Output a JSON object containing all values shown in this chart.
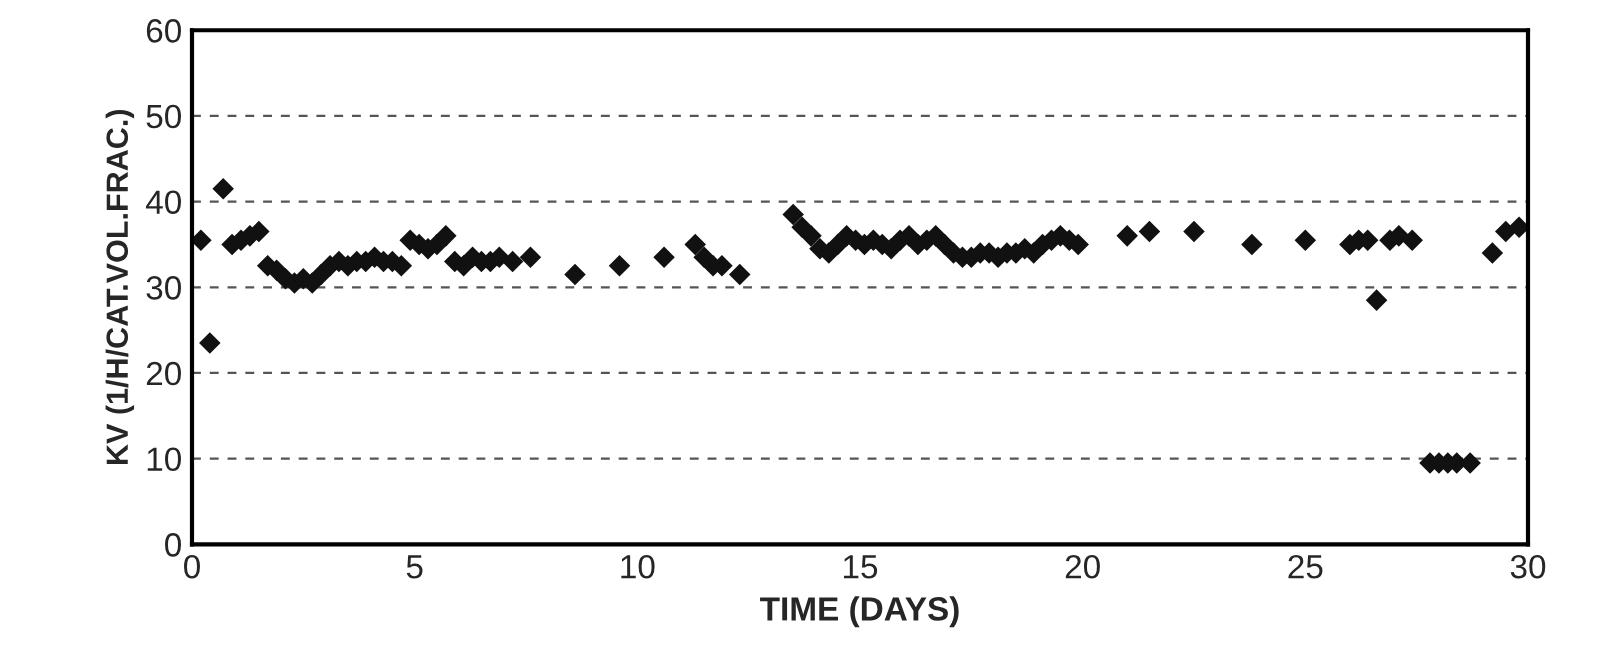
{
  "chart_data": {
    "type": "scatter",
    "xlabel": "TIME (DAYS)",
    "ylabel": "KV (1/H/CAT.VOL.FRAC.)",
    "xlim": [
      0,
      30
    ],
    "xticks": [
      0,
      5,
      10,
      15,
      20,
      25,
      30
    ],
    "ylim": [
      0,
      60
    ],
    "yticks": [
      0,
      10,
      20,
      30,
      40,
      50,
      60
    ],
    "grid": "y",
    "marker": "diamond",
    "series": [
      {
        "color": "#111111",
        "x": [
          0.2,
          0.4,
          0.7,
          0.9,
          1.1,
          1.3,
          1.5,
          1.7,
          1.9,
          2.1,
          2.3,
          2.5,
          2.7,
          2.9,
          3.1,
          3.3,
          3.5,
          3.7,
          3.9,
          4.1,
          4.3,
          4.5,
          4.7,
          4.9,
          5.1,
          5.3,
          5.5,
          5.7,
          5.9,
          6.1,
          6.3,
          6.5,
          6.7,
          6.9,
          7.2,
          7.6,
          8.6,
          9.6,
          10.6,
          11.3,
          11.5,
          11.7,
          11.9,
          12.3,
          13.5,
          13.7,
          13.9,
          14.1,
          14.3,
          14.5,
          14.7,
          14.9,
          15.1,
          15.3,
          15.5,
          15.7,
          15.9,
          16.1,
          16.3,
          16.5,
          16.7,
          16.9,
          17.1,
          17.3,
          17.5,
          17.7,
          17.9,
          18.1,
          18.3,
          18.5,
          18.7,
          18.9,
          19.1,
          19.3,
          19.5,
          19.7,
          19.9,
          21,
          21.5,
          22.5,
          23.8,
          25,
          26,
          26.2,
          26.4,
          26.6,
          26.9,
          27.1,
          27.4,
          27.8,
          28,
          28.2,
          28.4,
          28.7,
          29.2,
          29.5,
          29.8
        ],
        "values": [
          35.5,
          23.5,
          41.5,
          35,
          35.5,
          36,
          36.5,
          32.5,
          32,
          31,
          30.5,
          31,
          30.5,
          31.5,
          32.5,
          33,
          32.5,
          33,
          33,
          33.5,
          33,
          33,
          32.5,
          35.5,
          35,
          34.5,
          35,
          36,
          33,
          32.5,
          33.5,
          33,
          33,
          33.5,
          33,
          33.5,
          31.5,
          32.5,
          33.5,
          35,
          33.5,
          32.5,
          32.5,
          31.5,
          38.5,
          37,
          36,
          34.5,
          34,
          35,
          36,
          35.5,
          35,
          35.5,
          35,
          34.5,
          35.5,
          36,
          35,
          35.5,
          36,
          35,
          34,
          33.5,
          33.5,
          34,
          34,
          33.5,
          34,
          34,
          34.5,
          34,
          35,
          35.5,
          36,
          35.5,
          35,
          36,
          36.5,
          36.5,
          35,
          35.5,
          35,
          35.5,
          35.5,
          28.5,
          35.5,
          36,
          35.5,
          9.5,
          9.5,
          9.5,
          9.5,
          9.5,
          34,
          36.5,
          37
        ]
      }
    ]
  }
}
